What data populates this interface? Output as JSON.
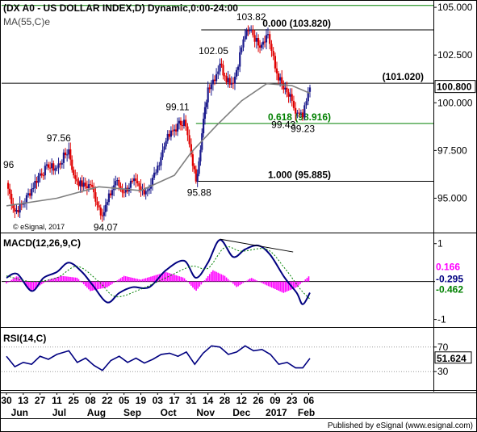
{
  "chart_data": [
    {
      "type": "candlestick",
      "title": "(DX A0 - US DOLLAR INDEX,D) Dynamic,0:00-24:00",
      "overlay": "MA(55,C)e",
      "colors": {
        "bull": "#1a1a8c",
        "bear": "#e00000",
        "ma": "#7f7f7f",
        "level_line": "#000000",
        "fib_text": "#008000"
      },
      "yticks": [
        95.0,
        97.5,
        100.0,
        102.5,
        105.0
      ],
      "ytick_labels": [
        "95.000",
        "97.500",
        "100.000",
        "102.500",
        "105.000"
      ],
      "ylim": [
        93.2,
        105.3
      ],
      "last_price": "100.800",
      "watermark": "© eSignal, 2017",
      "horizontal_levels": [
        {
          "price": 103.82,
          "label": "0.000 (103.820)",
          "color": "#000000"
        },
        {
          "price": 101.02,
          "label": "(101.020)",
          "color": "#000000"
        },
        {
          "price": 98.916,
          "label": "0.618 (98.916)",
          "color": "#008000"
        },
        {
          "price": 95.885,
          "label": "1.000 (95.885)",
          "color": "#000000"
        },
        {
          "price": 105.1,
          "label": "",
          "color": "#008000"
        }
      ],
      "annotations": [
        {
          "text": "96",
          "price": 96.0
        },
        {
          "text": "97.56",
          "price": 97.56
        },
        {
          "text": "94.07",
          "price": 94.07
        },
        {
          "text": "99.11",
          "price": 99.11
        },
        {
          "text": "95.88",
          "price": 95.88
        },
        {
          "text": "102.05",
          "price": 102.05
        },
        {
          "text": "103.82",
          "price": 103.82
        },
        {
          "text": "99.43",
          "price": 99.43
        },
        {
          "text": "99.23",
          "price": 99.23
        }
      ],
      "close_path": [
        {
          "date": "2016-05-30",
          "close": 95.8
        },
        {
          "date": "2016-06-06",
          "close": 94.3
        },
        {
          "date": "2016-06-13",
          "close": 94.7
        },
        {
          "date": "2016-06-20",
          "close": 95.5
        },
        {
          "date": "2016-06-27",
          "close": 96.3
        },
        {
          "date": "2016-07-04",
          "close": 96.6
        },
        {
          "date": "2016-07-11",
          "close": 96.6
        },
        {
          "date": "2016-07-21",
          "close": 97.56
        },
        {
          "date": "2016-07-25",
          "close": 96.2
        },
        {
          "date": "2016-08-01",
          "close": 95.6
        },
        {
          "date": "2016-08-08",
          "close": 95.7
        },
        {
          "date": "2016-08-18",
          "close": 94.07
        },
        {
          "date": "2016-08-22",
          "close": 94.8
        },
        {
          "date": "2016-08-29",
          "close": 95.9
        },
        {
          "date": "2016-09-05",
          "close": 95.3
        },
        {
          "date": "2016-09-12",
          "close": 95.9
        },
        {
          "date": "2016-09-19",
          "close": 95.4
        },
        {
          "date": "2016-09-26",
          "close": 95.5
        },
        {
          "date": "2016-10-03",
          "close": 96.7
        },
        {
          "date": "2016-10-10",
          "close": 98.0
        },
        {
          "date": "2016-10-17",
          "close": 98.6
        },
        {
          "date": "2016-10-25",
          "close": 99.11
        },
        {
          "date": "2016-10-31",
          "close": 97.3
        },
        {
          "date": "2016-11-04",
          "close": 95.88
        },
        {
          "date": "2016-11-09",
          "close": 98.4
        },
        {
          "date": "2016-11-14",
          "close": 100.8
        },
        {
          "date": "2016-11-21",
          "close": 101.5
        },
        {
          "date": "2016-11-24",
          "close": 102.05
        },
        {
          "date": "2016-11-28",
          "close": 101.4
        },
        {
          "date": "2016-12-05",
          "close": 101.0
        },
        {
          "date": "2016-12-12",
          "close": 102.9
        },
        {
          "date": "2016-12-15",
          "close": 103.5
        },
        {
          "date": "2016-12-20",
          "close": 103.82
        },
        {
          "date": "2016-12-26",
          "close": 103.0
        },
        {
          "date": "2017-01-03",
          "close": 103.6
        },
        {
          "date": "2017-01-09",
          "close": 101.8
        },
        {
          "date": "2017-01-16",
          "close": 100.7
        },
        {
          "date": "2017-01-23",
          "close": 100.1
        },
        {
          "date": "2017-01-26",
          "close": 99.43
        },
        {
          "date": "2017-02-01",
          "close": 99.23
        },
        {
          "date": "2017-02-07",
          "close": 100.8
        }
      ],
      "ma_path": [
        {
          "date": "2016-05-30",
          "value": 94.6
        },
        {
          "date": "2016-07-11",
          "value": 95.0
        },
        {
          "date": "2016-08-15",
          "value": 95.6
        },
        {
          "date": "2016-09-19",
          "value": 95.4
        },
        {
          "date": "2016-10-17",
          "value": 96.2
        },
        {
          "date": "2016-10-31",
          "value": 97.4
        },
        {
          "date": "2016-11-21",
          "value": 98.8
        },
        {
          "date": "2016-12-12",
          "value": 100.1
        },
        {
          "date": "2017-01-02",
          "value": 101.0
        },
        {
          "date": "2017-01-23",
          "value": 100.9
        },
        {
          "date": "2017-02-07",
          "value": 100.5
        }
      ]
    },
    {
      "type": "line",
      "title": "MACD(12,26,9,C)",
      "yticks": [
        1,
        0,
        -1
      ],
      "ytick_labels": [
        "1",
        "0",
        "-1"
      ],
      "ylim": [
        -1.2,
        1.25
      ],
      "value_labels": [
        {
          "text": "0.166",
          "value": 0.166,
          "color": "#ff00ff"
        },
        {
          "text": "-0.295",
          "value": -0.295,
          "color": "#000080"
        },
        {
          "text": "-0.462",
          "value": -0.462,
          "color": "#008000"
        }
      ],
      "series": [
        {
          "key": "macd",
          "color": "#000080",
          "points": [
            {
              "date": "2016-05-30",
              "value": 0.1
            },
            {
              "date": "2016-06-08",
              "value": 0.2
            },
            {
              "date": "2016-06-20",
              "value": -0.25
            },
            {
              "date": "2016-06-30",
              "value": 0.1
            },
            {
              "date": "2016-07-11",
              "value": 0.25
            },
            {
              "date": "2016-07-21",
              "value": 0.5
            },
            {
              "date": "2016-08-01",
              "value": 0.25
            },
            {
              "date": "2016-08-10",
              "value": -0.1
            },
            {
              "date": "2016-08-22",
              "value": -0.55
            },
            {
              "date": "2016-09-01",
              "value": -0.3
            },
            {
              "date": "2016-09-12",
              "value": -0.15
            },
            {
              "date": "2016-09-26",
              "value": -0.15
            },
            {
              "date": "2016-10-10",
              "value": 0.3
            },
            {
              "date": "2016-10-25",
              "value": 0.55
            },
            {
              "date": "2016-11-04",
              "value": 0.1
            },
            {
              "date": "2016-11-14",
              "value": 0.5
            },
            {
              "date": "2016-11-24",
              "value": 1.1
            },
            {
              "date": "2016-12-05",
              "value": 0.65
            },
            {
              "date": "2016-12-15",
              "value": 0.85
            },
            {
              "date": "2016-12-26",
              "value": 0.95
            },
            {
              "date": "2017-01-05",
              "value": 0.7
            },
            {
              "date": "2017-01-17",
              "value": 0.1
            },
            {
              "date": "2017-01-27",
              "value": -0.3
            },
            {
              "date": "2017-02-01",
              "value": -0.6
            },
            {
              "date": "2017-02-07",
              "value": -0.295
            }
          ]
        },
        {
          "key": "signal",
          "color": "#008000",
          "dash": "2,2",
          "points": [
            {
              "date": "2016-05-30",
              "value": 0.15
            },
            {
              "date": "2016-06-20",
              "value": 0.0
            },
            {
              "date": "2016-07-11",
              "value": 0.1
            },
            {
              "date": "2016-07-28",
              "value": 0.4
            },
            {
              "date": "2016-08-15",
              "value": 0.0
            },
            {
              "date": "2016-08-29",
              "value": -0.4
            },
            {
              "date": "2016-09-19",
              "value": -0.2
            },
            {
              "date": "2016-10-10",
              "value": 0.1
            },
            {
              "date": "2016-10-31",
              "value": 0.4
            },
            {
              "date": "2016-11-14",
              "value": 0.35
            },
            {
              "date": "2016-11-28",
              "value": 0.9
            },
            {
              "date": "2016-12-12",
              "value": 0.8
            },
            {
              "date": "2017-01-02",
              "value": 0.85
            },
            {
              "date": "2017-01-17",
              "value": 0.35
            },
            {
              "date": "2017-01-30",
              "value": -0.2
            },
            {
              "date": "2017-02-07",
              "value": -0.462
            }
          ]
        }
      ],
      "histogram": {
        "color": "#ff00ff",
        "points": [
          {
            "date": "2016-05-30",
            "value": -0.05
          },
          {
            "date": "2016-06-08",
            "value": 0.15
          },
          {
            "date": "2016-06-20",
            "value": -0.25
          },
          {
            "date": "2016-07-04",
            "value": 0.05
          },
          {
            "date": "2016-07-15",
            "value": 0.15
          },
          {
            "date": "2016-07-28",
            "value": 0.1
          },
          {
            "date": "2016-08-08",
            "value": -0.25
          },
          {
            "date": "2016-08-22",
            "value": -0.15
          },
          {
            "date": "2016-09-05",
            "value": 0.15
          },
          {
            "date": "2016-09-19",
            "value": 0.05
          },
          {
            "date": "2016-10-10",
            "value": 0.25
          },
          {
            "date": "2016-10-25",
            "value": 0.1
          },
          {
            "date": "2016-11-04",
            "value": -0.25
          },
          {
            "date": "2016-11-18",
            "value": 0.3
          },
          {
            "date": "2016-11-28",
            "value": 0.15
          },
          {
            "date": "2016-12-08",
            "value": -0.15
          },
          {
            "date": "2016-12-20",
            "value": 0.1
          },
          {
            "date": "2017-01-02",
            "value": -0.1
          },
          {
            "date": "2017-01-16",
            "value": -0.3
          },
          {
            "date": "2017-01-27",
            "value": -0.15
          },
          {
            "date": "2017-02-07",
            "value": 0.166
          }
        ]
      },
      "trendline": [
        {
          "date": "2016-11-24",
          "value": 1.12
        },
        {
          "date": "2017-01-24",
          "value": 0.78
        }
      ]
    },
    {
      "type": "line",
      "title": "RSI(14,C)",
      "yticks": [
        70,
        30
      ],
      "ytick_labels": [
        "70",
        "30"
      ],
      "ylim": [
        0,
        100
      ],
      "guide_levels": [
        70,
        30
      ],
      "value_label": {
        "text": "51.624",
        "value": 51.624
      },
      "series": [
        {
          "key": "rsi",
          "color": "#000080",
          "points": [
            {
              "date": "2016-05-30",
              "value": 55
            },
            {
              "date": "2016-06-06",
              "value": 38
            },
            {
              "date": "2016-06-13",
              "value": 45
            },
            {
              "date": "2016-06-20",
              "value": 42
            },
            {
              "date": "2016-06-27",
              "value": 55
            },
            {
              "date": "2016-07-04",
              "value": 50
            },
            {
              "date": "2016-07-11",
              "value": 58
            },
            {
              "date": "2016-07-21",
              "value": 64
            },
            {
              "date": "2016-07-28",
              "value": 45
            },
            {
              "date": "2016-08-04",
              "value": 52
            },
            {
              "date": "2016-08-11",
              "value": 40
            },
            {
              "date": "2016-08-18",
              "value": 32
            },
            {
              "date": "2016-08-25",
              "value": 48
            },
            {
              "date": "2016-09-01",
              "value": 55
            },
            {
              "date": "2016-09-08",
              "value": 45
            },
            {
              "date": "2016-09-15",
              "value": 52
            },
            {
              "date": "2016-09-22",
              "value": 44
            },
            {
              "date": "2016-09-29",
              "value": 50
            },
            {
              "date": "2016-10-06",
              "value": 58
            },
            {
              "date": "2016-10-13",
              "value": 60
            },
            {
              "date": "2016-10-20",
              "value": 55
            },
            {
              "date": "2016-10-27",
              "value": 62
            },
            {
              "date": "2016-11-03",
              "value": 42
            },
            {
              "date": "2016-11-10",
              "value": 60
            },
            {
              "date": "2016-11-17",
              "value": 72
            },
            {
              "date": "2016-11-24",
              "value": 70
            },
            {
              "date": "2016-12-01",
              "value": 58
            },
            {
              "date": "2016-12-08",
              "value": 62
            },
            {
              "date": "2016-12-15",
              "value": 72
            },
            {
              "date": "2016-12-22",
              "value": 64
            },
            {
              "date": "2016-12-29",
              "value": 66
            },
            {
              "date": "2017-01-05",
              "value": 58
            },
            {
              "date": "2017-01-12",
              "value": 42
            },
            {
              "date": "2017-01-19",
              "value": 45
            },
            {
              "date": "2017-01-26",
              "value": 36
            },
            {
              "date": "2017-02-01",
              "value": 36
            },
            {
              "date": "2017-02-07",
              "value": 51.624
            }
          ]
        }
      ]
    }
  ],
  "x_axis": {
    "start": "2016-05-30",
    "end": "2017-02-07",
    "ticks": [
      {
        "date": "2016-05-30",
        "label": "30"
      },
      {
        "date": "2016-06-13",
        "label": "13"
      },
      {
        "date": "2016-06-27",
        "label": "27"
      },
      {
        "date": "2016-07-11",
        "label": "11"
      },
      {
        "date": "2016-07-25",
        "label": "25"
      },
      {
        "date": "2016-08-08",
        "label": "08"
      },
      {
        "date": "2016-08-22",
        "label": "22"
      },
      {
        "date": "2016-09-05",
        "label": "05"
      },
      {
        "date": "2016-09-19",
        "label": "19"
      },
      {
        "date": "2016-10-03",
        "label": "03"
      },
      {
        "date": "2016-10-17",
        "label": "17"
      },
      {
        "date": "2016-10-31",
        "label": "31"
      },
      {
        "date": "2016-11-14",
        "label": "14"
      },
      {
        "date": "2016-11-28",
        "label": "28"
      },
      {
        "date": "2016-12-12",
        "label": "12"
      },
      {
        "date": "2016-12-26",
        "label": "26"
      },
      {
        "date": "2017-01-09",
        "label": "09"
      },
      {
        "date": "2017-01-23",
        "label": "23"
      },
      {
        "date": "2017-02-06",
        "label": "06"
      }
    ],
    "months": [
      {
        "date": "2016-06-10",
        "label": "Jun"
      },
      {
        "date": "2016-07-13",
        "label": "Jul"
      },
      {
        "date": "2016-08-13",
        "label": "Aug"
      },
      {
        "date": "2016-09-12",
        "label": "Sep"
      },
      {
        "date": "2016-10-12",
        "label": "Oct"
      },
      {
        "date": "2016-11-12",
        "label": "Nov"
      },
      {
        "date": "2016-12-12",
        "label": "Dec"
      },
      {
        "date": "2017-01-10",
        "label": "2017"
      },
      {
        "date": "2017-02-04",
        "label": "Feb"
      }
    ]
  },
  "footer": "Published by eSignal (www.esignal.com)"
}
